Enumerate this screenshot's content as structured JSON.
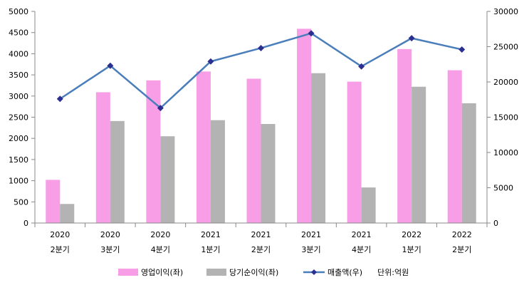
{
  "chart_data": {
    "type": "bar",
    "categories": [
      [
        "2020",
        "2분기"
      ],
      [
        "2020",
        "3분기"
      ],
      [
        "2020",
        "4분기"
      ],
      [
        "2021",
        "1분기"
      ],
      [
        "2021",
        "2분기"
      ],
      [
        "2021",
        "3분기"
      ],
      [
        "2021",
        "4분기"
      ],
      [
        "2022",
        "1분기"
      ],
      [
        "2022",
        "2분기"
      ]
    ],
    "series": [
      {
        "name": "영업이익(좌)",
        "type": "bar",
        "axis": "left",
        "color": "#f79ee7",
        "values": [
          1020,
          3090,
          3370,
          3580,
          3410,
          4590,
          3340,
          4110,
          3610
        ]
      },
      {
        "name": "당기순이익(좌)",
        "type": "bar",
        "axis": "left",
        "color": "#b3b3b3",
        "values": [
          450,
          2410,
          2050,
          2430,
          2340,
          3540,
          840,
          3220,
          2830
        ]
      },
      {
        "name": "매출액(우)",
        "type": "line",
        "axis": "right",
        "color": "#4a7ebb",
        "marker_color": "#2b2f8f",
        "values": [
          17600,
          22300,
          16300,
          22900,
          24800,
          26900,
          22200,
          26200,
          24600
        ]
      }
    ],
    "y_left": {
      "ylim": [
        0,
        5000
      ],
      "ticks": [
        "0",
        "500",
        "1000",
        "1500",
        "2000",
        "2500",
        "3000",
        "3500",
        "4000",
        "4500",
        "5000"
      ]
    },
    "y_right": {
      "ylim": [
        0,
        30000
      ],
      "ticks": [
        "0",
        "5000",
        "10000",
        "15000",
        "20000",
        "25000",
        "30000"
      ]
    },
    "unit_note": "단위:억원",
    "legend_position": "bottom",
    "grid": false
  }
}
